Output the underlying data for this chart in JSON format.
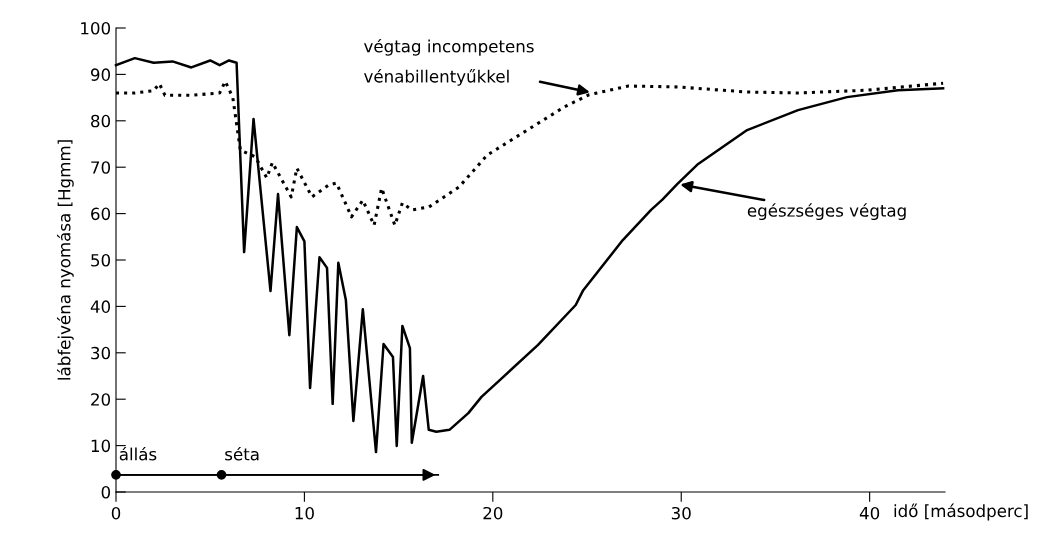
{
  "chart_data": {
    "type": "line",
    "xlabel": "idő [másodperc]",
    "ylabel": "lábfejvéna nyomása [Hgmm]",
    "xlim": [
      0,
      44
    ],
    "ylim": [
      0,
      100
    ],
    "xticks": [
      0,
      10,
      20,
      30,
      40
    ],
    "yticks": [
      0,
      10,
      20,
      30,
      40,
      50,
      60,
      70,
      80,
      90,
      100
    ],
    "grid": false,
    "legend": false,
    "series": [
      {
        "color": "#000000",
        "line_style": "solid",
        "x": [
          0,
          1,
          2,
          3,
          4,
          5,
          5.5,
          6,
          6.4,
          6.8,
          7.3,
          8.2,
          8.6,
          9.2,
          9.6,
          10,
          10.3,
          10.8,
          11.2,
          11.5,
          11.8,
          12.2,
          12.6,
          13.1,
          13.8,
          14.2,
          14.7,
          14.9,
          15.2,
          15.6,
          15.7,
          16.3,
          16.6,
          17,
          17.7,
          18.7,
          19.4,
          20.5,
          22.4,
          24.4,
          24.8,
          26.9,
          28.4,
          29,
          29.8,
          30.9,
          33.5,
          36.2,
          38.8,
          41.5,
          43.9
        ],
        "values": [
          92,
          93.5,
          92.5,
          92.8,
          91.5,
          93,
          92,
          93,
          92.5,
          51.7,
          80.4,
          43.3,
          64.2,
          33.8,
          57.1,
          54,
          22.4,
          50.6,
          48.3,
          19,
          49.4,
          41.4,
          15.3,
          39.4,
          8.6,
          31.9,
          29.1,
          9.9,
          35.8,
          31,
          10.6,
          25,
          13.4,
          13,
          13.4,
          17,
          20.5,
          24.6,
          31.7,
          40.3,
          43.5,
          54.3,
          60.8,
          63,
          66.4,
          70.7,
          78,
          82.3,
          85.1,
          86.6,
          87
        ]
      },
      {
        "color": "#000000",
        "line_style": "dotted",
        "x": [
          0,
          1,
          2,
          2.3,
          2.6,
          4,
          5.5,
          5.8,
          6.2,
          6.6,
          7.4,
          8,
          8.3,
          9.3,
          9.6,
          10.4,
          11.3,
          11.7,
          12.5,
          13.1,
          13.7,
          14.1,
          14.8,
          15.2,
          15.7,
          16.6,
          18.2,
          19.7,
          23.8,
          25.1,
          27.2,
          29.8,
          33.5,
          36.2,
          39.9,
          43.9
        ],
        "values": [
          86,
          86,
          86.5,
          88,
          85.5,
          85.5,
          86,
          88.5,
          85,
          73.7,
          72.2,
          67.7,
          71,
          63.6,
          69.8,
          63.6,
          66.2,
          66.6,
          59.3,
          62.9,
          57.5,
          65.5,
          57.5,
          62.3,
          60.8,
          61.4,
          65.7,
          72.6,
          83,
          85.6,
          87.5,
          87.3,
          86.2,
          86,
          86.6,
          88.1
        ]
      },
      {
        "color": "#000000",
        "line_style": "solid",
        "x": [
          0,
          17.1
        ],
        "values": [
          3.7,
          3.7
        ]
      }
    ],
    "annotations": [
      {
        "text": "végtag incompetens\nvénabillentyűkkel",
        "x": 25.3,
        "y": 86
      },
      {
        "text": "egészséges végtag",
        "x": 29.8,
        "y": 66.4
      },
      {
        "text": "állás",
        "x": 0,
        "y": 3.7
      },
      {
        "text": "séta",
        "x": 5.6,
        "y": 3.7
      }
    ]
  }
}
